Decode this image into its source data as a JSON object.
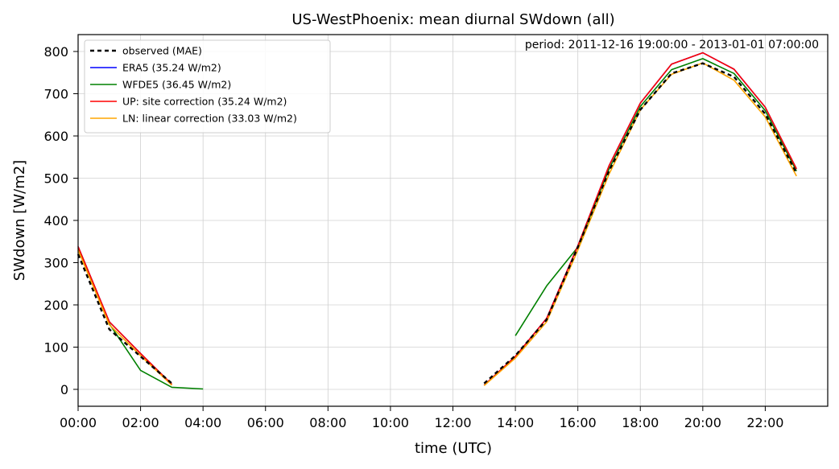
{
  "chart_data": {
    "type": "line",
    "title": "US-WestPhoenix: mean diurnal SWdown (all)",
    "xlabel": "time (UTC)",
    "ylabel": "SWdown [W/m2]",
    "annotation": "period: 2011-12-16 19:00:00 - 2013-01-01 07:00:00",
    "xlim": [
      0,
      24
    ],
    "ylim": [
      -40,
      840
    ],
    "grid": true,
    "legend_position": "top-left",
    "x_ticks": [
      0,
      2,
      4,
      6,
      8,
      10,
      12,
      14,
      16,
      18,
      20,
      22
    ],
    "x_tick_labels": [
      "00:00",
      "02:00",
      "04:00",
      "06:00",
      "08:00",
      "10:00",
      "12:00",
      "14:00",
      "16:00",
      "18:00",
      "20:00",
      "22:00"
    ],
    "y_ticks": [
      0,
      100,
      200,
      300,
      400,
      500,
      600,
      700,
      800
    ],
    "y_tick_labels": [
      "0",
      "100",
      "200",
      "300",
      "400",
      "500",
      "600",
      "700",
      "800"
    ],
    "series": [
      {
        "name": "ERA5 (35.24 W/m2)",
        "color": "#0000ff",
        "dash": "solid",
        "segments": [
          [
            [
              0,
              338
            ],
            [
              1,
              160
            ],
            [
              2,
              85
            ],
            [
              3,
              12
            ]
          ],
          [
            [
              13,
              10
            ],
            [
              14,
              78
            ],
            [
              15,
              168
            ],
            [
              16,
              340
            ],
            [
              17,
              530
            ],
            [
              18,
              678
            ],
            [
              19,
              770
            ],
            [
              20,
              797
            ],
            [
              21,
              758
            ],
            [
              22,
              668
            ],
            [
              23,
              522
            ]
          ]
        ]
      },
      {
        "name": "WFDE5 (36.45 W/m2)",
        "color": "#008000",
        "dash": "solid",
        "segments": [
          [
            [
              0,
              335
            ],
            [
              1,
              155
            ],
            [
              2,
              45
            ],
            [
              3,
              5
            ],
            [
              4,
              1
            ]
          ],
          [
            [
              14,
              127
            ],
            [
              15,
              245
            ],
            [
              16,
              337
            ],
            [
              17,
              522
            ],
            [
              18,
              670
            ],
            [
              19,
              757
            ],
            [
              20,
              783
            ],
            [
              21,
              748
            ],
            [
              22,
              660
            ],
            [
              23,
              517
            ]
          ]
        ]
      },
      {
        "name": "UP: site correction (35.24 W/m2)",
        "color": "#ff0000",
        "dash": "solid",
        "segments": [
          [
            [
              0,
              338
            ],
            [
              1,
              160
            ],
            [
              2,
              85
            ],
            [
              3,
              12
            ]
          ],
          [
            [
              13,
              10
            ],
            [
              14,
              78
            ],
            [
              15,
              168
            ],
            [
              16,
              340
            ],
            [
              17,
              530
            ],
            [
              18,
              678
            ],
            [
              19,
              770
            ],
            [
              20,
              797
            ],
            [
              21,
              758
            ],
            [
              22,
              668
            ],
            [
              23,
              522
            ]
          ]
        ]
      },
      {
        "name": "LN: linear correction (33.03 W/m2)",
        "color": "#ffa500",
        "dash": "solid",
        "segments": [
          [
            [
              0,
              330
            ],
            [
              1,
              153
            ],
            [
              2,
              80
            ],
            [
              3,
              10
            ]
          ],
          [
            [
              13,
              9
            ],
            [
              14,
              74
            ],
            [
              15,
              160
            ],
            [
              16,
              330
            ],
            [
              17,
              510
            ],
            [
              18,
              662
            ],
            [
              19,
              746
            ],
            [
              20,
              773
            ],
            [
              21,
              732
            ],
            [
              22,
              645
            ],
            [
              23,
              505
            ]
          ]
        ]
      },
      {
        "name": "observed (MAE)",
        "color": "#000000",
        "dash": "dashed",
        "segments": [
          [
            [
              0,
              320
            ],
            [
              1,
              142
            ],
            [
              2,
              78
            ],
            [
              3,
              14
            ]
          ],
          [
            [
              13,
              14
            ],
            [
              14,
              80
            ],
            [
              15,
              165
            ],
            [
              16,
              337
            ],
            [
              17,
              518
            ],
            [
              18,
              662
            ],
            [
              19,
              748
            ],
            [
              20,
              772
            ],
            [
              21,
              740
            ],
            [
              22,
              652
            ],
            [
              23,
              512
            ]
          ]
        ]
      }
    ],
    "legend_order": [
      "observed (MAE)",
      "ERA5 (35.24 W/m2)",
      "WFDE5 (36.45 W/m2)",
      "UP: site correction (35.24 W/m2)",
      "LN: linear correction (33.03 W/m2)"
    ]
  }
}
